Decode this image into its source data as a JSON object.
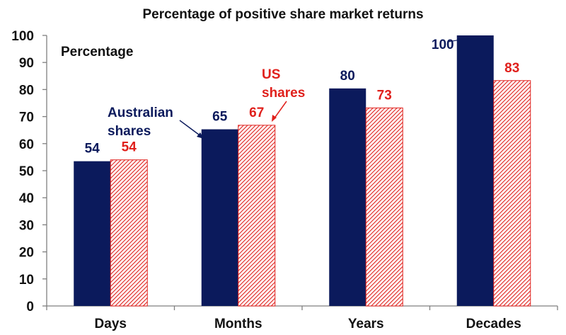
{
  "chart_data": {
    "type": "bar",
    "title": "Percentage of positive share market returns",
    "ylabel": "",
    "xlabel": "",
    "ylim": [
      0,
      100
    ],
    "yticks": [
      0,
      10,
      20,
      30,
      40,
      50,
      60,
      70,
      80,
      90,
      100
    ],
    "categories": [
      "Days",
      "Months",
      "Years",
      "Decades"
    ],
    "series": [
      {
        "name": "Australian shares",
        "values": [
          53.5,
          65.3,
          80.4,
          100
        ],
        "labels": [
          "54",
          "65",
          "80",
          "100"
        ],
        "color": "#0b1a5c"
      },
      {
        "name": "US shares",
        "values": [
          54,
          66.8,
          73.2,
          83.3
        ],
        "labels": [
          "54",
          "67",
          "73",
          "83"
        ],
        "color": "#e0201c"
      }
    ],
    "annotations": {
      "unit_label": "Percentage",
      "aus_label": [
        "Australian",
        "shares"
      ],
      "us_label": [
        "US",
        "shares"
      ]
    },
    "grid": false,
    "legend": "none"
  }
}
